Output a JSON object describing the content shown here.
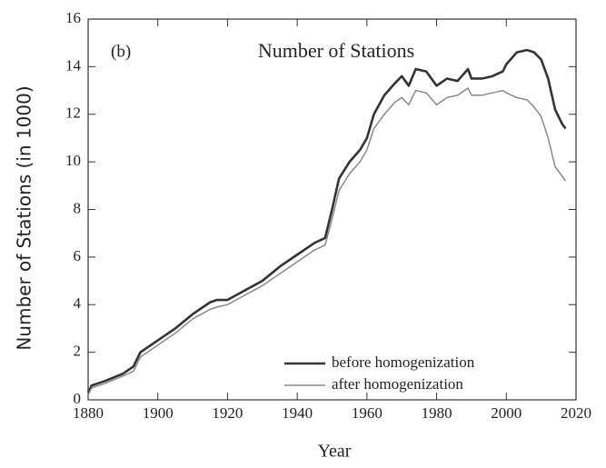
{
  "chart_data": {
    "type": "line",
    "title": "Number of Stations",
    "annotation": "(b)",
    "x_label": "Year",
    "y_label": "Number of Stations (in 1000)",
    "x": [
      1880,
      1881,
      1885,
      1890,
      1893,
      1895,
      1900,
      1905,
      1910,
      1915,
      1917,
      1920,
      1925,
      1930,
      1935,
      1940,
      1945,
      1948,
      1950,
      1952,
      1955,
      1958,
      1960,
      1962,
      1965,
      1968,
      1970,
      1972,
      1974,
      1977,
      1980,
      1983,
      1986,
      1989,
      1990,
      1993,
      1996,
      1999,
      2000,
      2003,
      2006,
      2008,
      2010,
      2012,
      2014,
      2016,
      2017
    ],
    "series": [
      {
        "name": "before homogenization",
        "color": "#333333",
        "values": [
          0.3,
          0.6,
          0.8,
          1.1,
          1.4,
          2.0,
          2.5,
          3.0,
          3.6,
          4.1,
          4.2,
          4.2,
          4.6,
          5.0,
          5.6,
          6.1,
          6.6,
          6.8,
          8.0,
          9.3,
          10.0,
          10.5,
          11.0,
          12.0,
          12.8,
          13.3,
          13.6,
          13.2,
          13.9,
          13.8,
          13.2,
          13.5,
          13.4,
          13.9,
          13.5,
          13.5,
          13.6,
          13.8,
          14.1,
          14.6,
          14.7,
          14.6,
          14.3,
          13.5,
          12.2,
          11.6,
          11.4
        ]
      },
      {
        "name": "after homogenization",
        "color": "#888888",
        "values": [
          0.2,
          0.5,
          0.7,
          1.0,
          1.2,
          1.8,
          2.3,
          2.8,
          3.4,
          3.8,
          3.9,
          4.0,
          4.4,
          4.8,
          5.3,
          5.8,
          6.3,
          6.5,
          7.6,
          8.8,
          9.5,
          10.0,
          10.5,
          11.4,
          12.0,
          12.5,
          12.7,
          12.4,
          13.0,
          12.9,
          12.4,
          12.7,
          12.8,
          13.1,
          12.8,
          12.8,
          12.9,
          13.0,
          12.9,
          12.7,
          12.6,
          12.3,
          11.9,
          11.0,
          9.8,
          9.4,
          9.2
        ]
      }
    ],
    "xlim": [
      1880,
      2020
    ],
    "xticks": [
      1880,
      1900,
      1920,
      1940,
      1960,
      1980,
      2000,
      2020
    ],
    "ylim": [
      0,
      16
    ],
    "yticks": [
      0,
      2,
      4,
      6,
      8,
      10,
      12,
      14,
      16
    ],
    "grid": false,
    "legend": "lower right"
  }
}
